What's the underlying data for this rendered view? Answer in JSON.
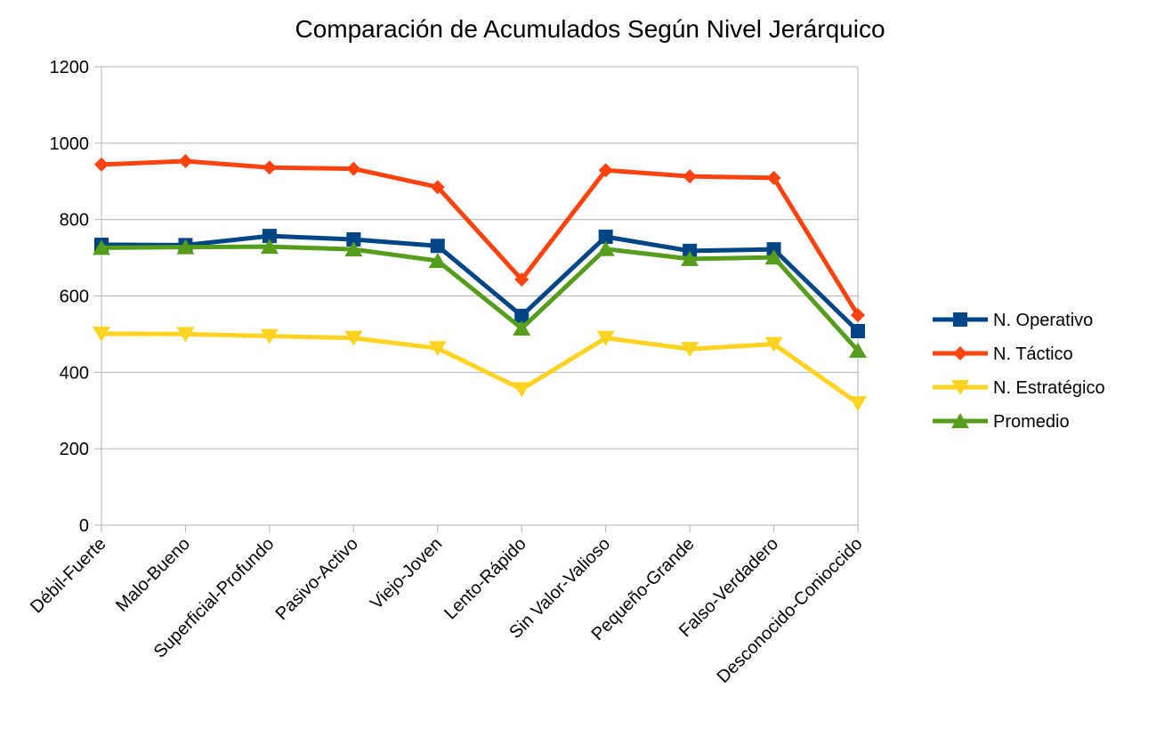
{
  "chart_data": {
    "type": "line",
    "title": "Comparación de Acumulados Según Nivel Jerárquico",
    "categories": [
      "Débil-Fuerte",
      "Malo-Bueno",
      "Superficial-Profundo",
      "Pasivo-Activo",
      "Viejo-Joven",
      "Lento-Rápido",
      "Sin Valor-Valioso",
      "Pequeño-Grande",
      "Falso-Verdadero",
      "Desconocido-Conioccido"
    ],
    "series": [
      {
        "name": "N. Operativo",
        "color": "#004586",
        "marker": "square",
        "values": [
          734,
          733,
          757,
          748,
          731,
          548,
          755,
          718,
          722,
          508
        ]
      },
      {
        "name": "N. Táctico",
        "color": "#ff420e",
        "marker": "diamond",
        "values": [
          944,
          953,
          936,
          933,
          885,
          643,
          929,
          913,
          909,
          550
        ]
      },
      {
        "name": "N. Estratégico",
        "color": "#ffd320",
        "marker": "triangle-down",
        "values": [
          501,
          500,
          495,
          490,
          463,
          356,
          490,
          461,
          474,
          319
        ]
      },
      {
        "name": "Promedio",
        "color": "#579d1c",
        "marker": "triangle-up",
        "values": [
          726,
          728,
          729,
          722,
          692,
          515,
          723,
          697,
          701,
          457
        ]
      }
    ],
    "ylim": [
      0,
      1200
    ],
    "yticks": [
      0,
      200,
      400,
      600,
      800,
      1000,
      1200
    ],
    "grid": true,
    "legend": "right"
  }
}
